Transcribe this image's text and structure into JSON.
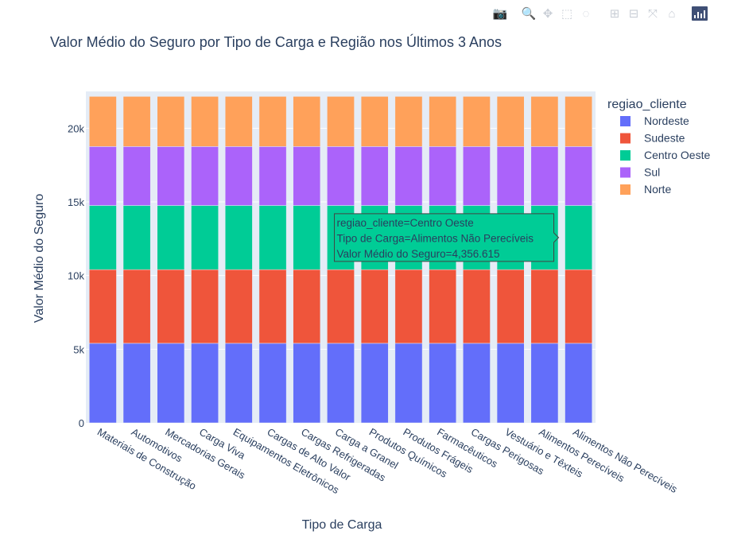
{
  "modebar": {
    "icons": [
      "camera-icon",
      "zoom-icon",
      "pan-icon",
      "box-select-icon",
      "lasso-select-icon",
      "zoom-in-icon",
      "zoom-out-icon",
      "autoscale-icon",
      "reset-axes-icon",
      "plotly-logo-icon"
    ]
  },
  "chart_data": {
    "type": "bar",
    "stacked": true,
    "title": "Valor Médio do Seguro por Tipo de Carga e Região nos Últimos 3 Anos",
    "xlabel": "Tipo de Carga",
    "ylabel": "Valor Médio do Seguro",
    "ylim": [
      0,
      22500
    ],
    "yticks": [
      0,
      5000,
      10000,
      15000,
      20000
    ],
    "ytick_labels": [
      "0",
      "5k",
      "10k",
      "15k",
      "20k"
    ],
    "grid": true,
    "plot_bg": "#e5ecf6",
    "legend": {
      "title": "regiao_cliente",
      "placement": "right"
    },
    "categories": [
      "Materiais de Construção",
      "Automotivos",
      "Mercadorias Gerais",
      "Carga Viva",
      "Equipamentos Eletrônicos",
      "Cargas de Alto Valor",
      "Cargas Refrigeradas",
      "Carga a Granel",
      "Produtos Químicos",
      "Produtos Frágeis",
      "Farmacêuticos",
      "Cargas Perigosas",
      "Vestuário e Têxteis",
      "Alimentos Perecíveis",
      "Alimentos Não Perecíveis"
    ],
    "series": [
      {
        "name": "Nordeste",
        "color": "#636efa",
        "values": [
          5400,
          5400,
          5400,
          5400,
          5400,
          5400,
          5400,
          5400,
          5400,
          5400,
          5400,
          5400,
          5400,
          5400,
          5400
        ]
      },
      {
        "name": "Sudeste",
        "color": "#ef553b",
        "values": [
          5000,
          5000,
          5000,
          5000,
          5000,
          5000,
          5000,
          5000,
          5000,
          5000,
          5000,
          5000,
          5000,
          5000,
          5000
        ]
      },
      {
        "name": "Centro Oeste",
        "color": "#00cc96",
        "values": [
          4357,
          4357,
          4357,
          4357,
          4357,
          4357,
          4357,
          4357,
          4357,
          4357,
          4357,
          4357,
          4357,
          4357,
          4357
        ]
      },
      {
        "name": "Sul",
        "color": "#ab63fa",
        "values": [
          4000,
          4000,
          4000,
          4000,
          4000,
          4000,
          4000,
          4000,
          4000,
          4000,
          4000,
          4000,
          4000,
          4000,
          4000
        ]
      },
      {
        "name": "Norte",
        "color": "#ffa15a",
        "values": [
          3400,
          3400,
          3400,
          3400,
          3400,
          3400,
          3400,
          3400,
          3400,
          3400,
          3400,
          3400,
          3400,
          3400,
          3400
        ]
      }
    ],
    "tooltip": {
      "series": "Centro Oeste",
      "category": "Alimentos Não Perecíveis",
      "lines": [
        "regiao_cliente=Centro Oeste",
        "Tipo de Carga=Alimentos Não Perecíveis",
        "Valor Médio do Seguro=4,356.615"
      ]
    }
  }
}
